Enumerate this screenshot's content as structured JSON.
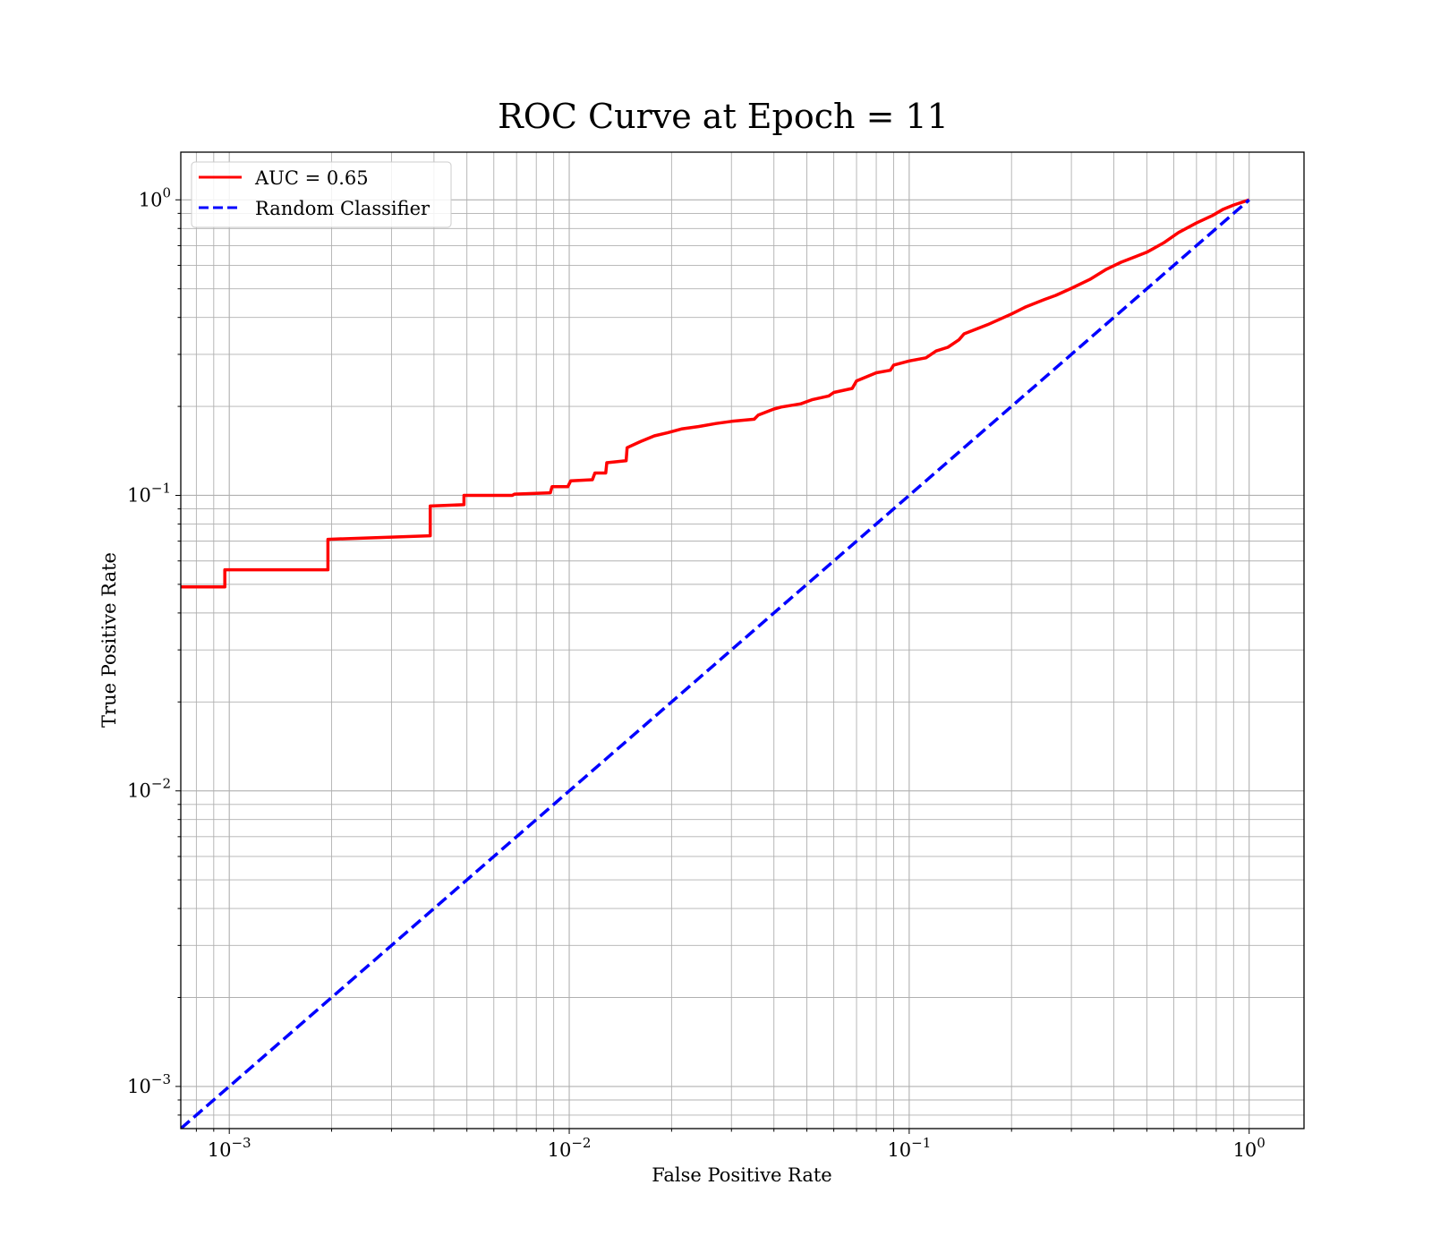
{
  "chart_data": {
    "type": "line",
    "title": "ROC Curve at Epoch = 11",
    "xlabel": "False Positive Rate",
    "ylabel": "True Positive Rate",
    "xscale": "log",
    "yscale": "log",
    "xlim": [
      0.00072,
      1.45
    ],
    "ylim": [
      0.00072,
      1.45
    ],
    "grid": "both (major and minor)",
    "legend_position": "upper left",
    "x_ticks": [
      {
        "value": 0.001,
        "base": "10",
        "exp": "−3"
      },
      {
        "value": 0.01,
        "base": "10",
        "exp": "−2"
      },
      {
        "value": 0.1,
        "base": "10",
        "exp": "−1"
      },
      {
        "value": 1,
        "base": "10",
        "exp": "0"
      }
    ],
    "y_ticks": [
      {
        "value": 0.001,
        "base": "10",
        "exp": "−3"
      },
      {
        "value": 0.01,
        "base": "10",
        "exp": "−2"
      },
      {
        "value": 0.1,
        "base": "10",
        "exp": "−1"
      },
      {
        "value": 1,
        "base": "10",
        "exp": "0"
      }
    ],
    "series": [
      {
        "name": "AUC = 0.65",
        "color": "#ff0000",
        "style": "solid",
        "x": [
          0.0007,
          0.00097,
          0.00097,
          0.00195,
          0.00195,
          0.0039,
          0.0039,
          0.0049,
          0.0049,
          0.0068,
          0.0069,
          0.0088,
          0.0089,
          0.0099,
          0.0101,
          0.0117,
          0.0119,
          0.0128,
          0.0129,
          0.0147,
          0.0148,
          0.0162,
          0.0178,
          0.0195,
          0.0215,
          0.024,
          0.027,
          0.03,
          0.035,
          0.036,
          0.04,
          0.042,
          0.048,
          0.052,
          0.058,
          0.06,
          0.068,
          0.07,
          0.08,
          0.088,
          0.09,
          0.1,
          0.112,
          0.12,
          0.13,
          0.14,
          0.145,
          0.17,
          0.2,
          0.22,
          0.25,
          0.27,
          0.3,
          0.34,
          0.38,
          0.42,
          0.5,
          0.56,
          0.62,
          0.7,
          0.78,
          0.84,
          0.9,
          1.0
        ],
        "y": [
          0.049,
          0.049,
          0.056,
          0.056,
          0.071,
          0.073,
          0.092,
          0.093,
          0.1,
          0.1,
          0.101,
          0.102,
          0.107,
          0.107,
          0.112,
          0.113,
          0.119,
          0.119,
          0.129,
          0.131,
          0.145,
          0.152,
          0.159,
          0.163,
          0.168,
          0.171,
          0.175,
          0.178,
          0.181,
          0.187,
          0.196,
          0.199,
          0.204,
          0.211,
          0.217,
          0.223,
          0.23,
          0.244,
          0.26,
          0.265,
          0.276,
          0.285,
          0.292,
          0.308,
          0.317,
          0.336,
          0.352,
          0.378,
          0.411,
          0.434,
          0.46,
          0.475,
          0.502,
          0.538,
          0.582,
          0.615,
          0.665,
          0.715,
          0.775,
          0.835,
          0.885,
          0.93,
          0.96,
          1.0
        ]
      },
      {
        "name": "Random Classifier",
        "color": "#0000ff",
        "style": "dashed",
        "x": [
          0.00072,
          1.0
        ],
        "y": [
          0.00072,
          1.0
        ]
      }
    ]
  }
}
